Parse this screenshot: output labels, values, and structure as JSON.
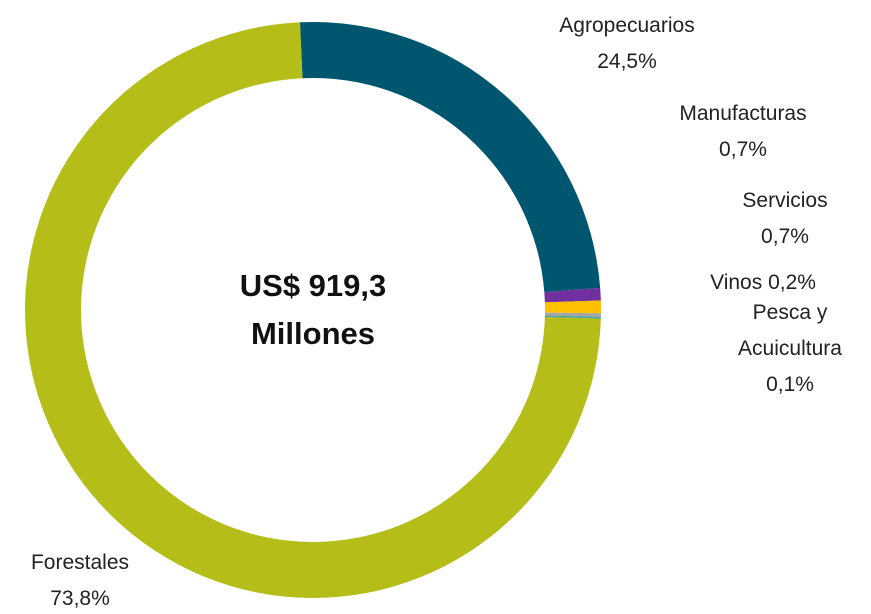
{
  "chart_data": {
    "type": "donut",
    "center_label": "US$ 919,3 Millones",
    "categories": [
      "Agropecuarios",
      "Manufacturas",
      "Servicios",
      "Vinos",
      "Pesca y Acuicultura",
      "Forestales"
    ],
    "values": [
      24.5,
      0.7,
      0.7,
      0.2,
      0.1,
      73.8
    ],
    "value_labels": [
      "24,5%",
      "0,7%",
      "0,7%",
      "0,2%",
      "0,1%",
      "73,8%"
    ],
    "colors": [
      "#00566e",
      "#7030a0",
      "#ffc000",
      "#a5a5a5",
      "#4aa3a0",
      "#b5be19"
    ]
  }
}
